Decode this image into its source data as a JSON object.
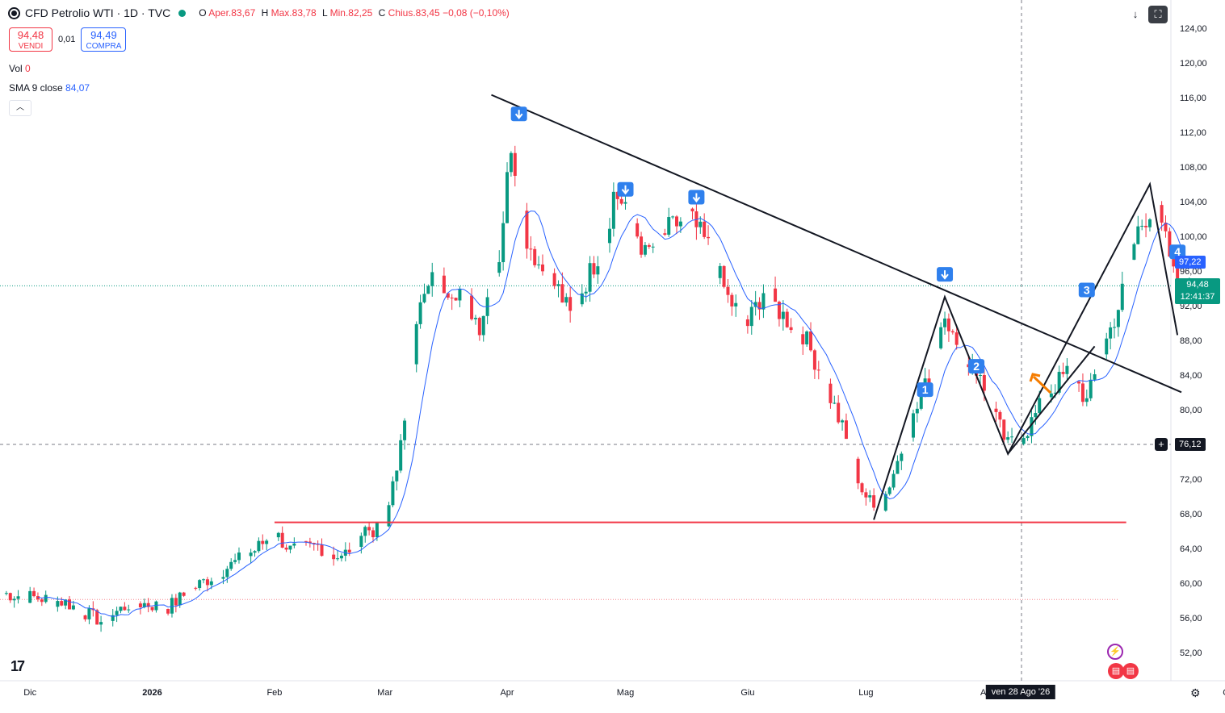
{
  "header": {
    "title": "CFD Petrolio WTI · 1D · TVC",
    "ohlc": [
      {
        "k": "O",
        "v": "Aper.83,67"
      },
      {
        "k": "H",
        "v": "Max.83,78"
      },
      {
        "k": "L",
        "v": "Min.82,25"
      },
      {
        "k": "C",
        "v": "Chius.83,45"
      },
      {
        "k": "",
        "v": "−0,08 (−0,10%)"
      }
    ]
  },
  "trade": {
    "sell_price": "94,48",
    "sell_label": "VENDI",
    "spread": "0,01",
    "buy_price": "94,49",
    "buy_label": "COMPRA"
  },
  "indicators": {
    "vol_label": "Vol",
    "vol_value": "0",
    "sma_label": "SMA 9 close",
    "sma_value": "84,07"
  },
  "price_axis": {
    "ticks": [
      "124,00",
      "120,00",
      "116,00",
      "112,00",
      "108,00",
      "104,00",
      "100,00",
      "96,00",
      "92,00",
      "88,00",
      "84,00",
      "80,00",
      "76,00",
      "72,00",
      "68,00",
      "64,00",
      "60,00",
      "56,00",
      "52,00"
    ],
    "sma_tag": "97,22",
    "last_price": "94,48",
    "countdown": "12:41:37",
    "crosshair_price": "76,12"
  },
  "time_axis": {
    "labels": [
      "Dic",
      "2026",
      "Feb",
      "Mar",
      "Apr",
      "Mag",
      "Giu",
      "Lug",
      "Ago",
      "Ott"
    ],
    "crosshair_date": "ven 28 Ago '26"
  },
  "wave_labels": [
    "1",
    "2",
    "3",
    "4"
  ],
  "colors": {
    "up": "#089981",
    "down": "#F23645",
    "sma": "#2962FF",
    "trend": "#131722",
    "support": "#F23645",
    "arrow": "#F57C00",
    "marker": "#2F80ED"
  },
  "chart_data": {
    "type": "candlestick",
    "symbol": "CFD Petrolio WTI",
    "interval": "1D",
    "ylim": [
      50,
      126
    ],
    "y_scale": "linear",
    "grid": false,
    "last_close": 94.48,
    "support_level": 67.2,
    "trendline": {
      "from": [
        "Mar 28",
        116.5
      ],
      "to": [
        "Sep 19",
        82.2
      ]
    },
    "sma9_last": 97.22,
    "anchors": [
      [
        "Nov 24",
        59.0
      ],
      [
        "Dec 1",
        58.6
      ],
      [
        "Dec 10",
        58.0
      ],
      [
        "Dec 19",
        55.8
      ],
      [
        "Dec 27",
        58.0
      ],
      [
        "Jan 5",
        57.4
      ],
      [
        "Jan 12",
        59.8
      ],
      [
        "Jan 20",
        62.0
      ],
      [
        "Jan 27",
        64.0
      ],
      [
        "Feb 1",
        66.0
      ],
      [
        "Feb 5",
        64.0
      ],
      [
        "Feb 12",
        64.5
      ],
      [
        "Feb 18",
        63.0
      ],
      [
        "Feb 24",
        66.5
      ],
      [
        "Mar 1",
        66.0
      ],
      [
        "Mar 3",
        72.0
      ],
      [
        "Mar 6",
        78.0
      ],
      [
        "Mar 9",
        91.0
      ],
      [
        "Mar 13",
        95.0
      ],
      [
        "Mar 20",
        94.0
      ],
      [
        "Mar 25",
        90.0
      ],
      [
        "Mar 30",
        98.0
      ],
      [
        "Apr 2",
        111.0
      ],
      [
        "Apr 6",
        100.0
      ],
      [
        "Apr 9",
        97.0
      ],
      [
        "Apr 14",
        94.0
      ],
      [
        "Apr 17",
        91.0
      ],
      [
        "Apr 22",
        96.0
      ],
      [
        "Apr 26",
        100.0
      ],
      [
        "Apr 28",
        105.0
      ],
      [
        "May 1",
        104.0
      ],
      [
        "May 6",
        98.0
      ],
      [
        "May 12",
        101.0
      ],
      [
        "May 17",
        102.5
      ],
      [
        "May 22",
        99.0
      ],
      [
        "May 27",
        93.0
      ],
      [
        "Jun 1",
        90.0
      ],
      [
        "Jun 5",
        94.0
      ],
      [
        "Jun 10",
        91.0
      ],
      [
        "Jun 15",
        89.0
      ],
      [
        "Jun 20",
        84.0
      ],
      [
        "Jun 25",
        78.0
      ],
      [
        "Jun 30",
        71.0
      ],
      [
        "Jul 4",
        68.0
      ],
      [
        "Jul 8",
        73.0
      ],
      [
        "Jul 12",
        78.0
      ],
      [
        "Jul 17",
        84.0
      ],
      [
        "Jul 21",
        92.0
      ],
      [
        "Jul 25",
        85.0
      ],
      [
        "Jul 28",
        86.0
      ],
      [
        "Aug 2",
        80.0
      ],
      [
        "Aug 6",
        76.0
      ],
      [
        "Aug 11",
        78.0
      ],
      [
        "Aug 16",
        82.0
      ],
      [
        "Aug 22",
        85.0
      ],
      [
        "Aug 26",
        81.0
      ],
      [
        "Aug 30",
        87.0
      ],
      [
        "Sep 3",
        92.0
      ],
      [
        "Sep 8",
        101.0
      ],
      [
        "Sep 12",
        104.0
      ],
      [
        "Sep 16",
        98.0
      ],
      [
        "Sep 19",
        91.0
      ],
      [
        "Sep 21",
        94.48
      ]
    ]
  }
}
